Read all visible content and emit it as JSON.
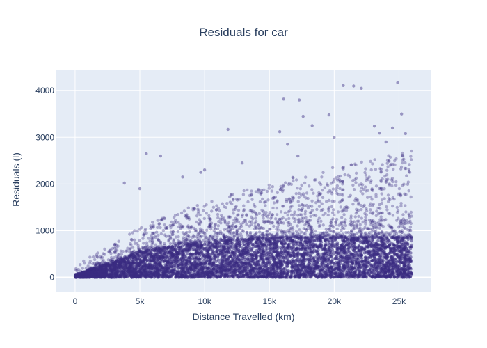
{
  "chart_data": {
    "type": "scatter",
    "title": "Residuals for car",
    "xlabel": "Distance Travelled (km)",
    "ylabel": "Residuals (l)",
    "xlim": [
      -1500,
      27500
    ],
    "ylim": [
      -320,
      4450
    ],
    "x_ticks": [
      {
        "value": 0,
        "label": "0"
      },
      {
        "value": 5000,
        "label": "5k"
      },
      {
        "value": 10000,
        "label": "10k"
      },
      {
        "value": 15000,
        "label": "15k"
      },
      {
        "value": 20000,
        "label": "20k"
      },
      {
        "value": 25000,
        "label": "25k"
      }
    ],
    "y_ticks": [
      {
        "value": 0,
        "label": "0"
      },
      {
        "value": 1000,
        "label": "1000"
      },
      {
        "value": 2000,
        "label": "2000"
      },
      {
        "value": 3000,
        "label": "3000"
      },
      {
        "value": 4000,
        "label": "4000"
      }
    ],
    "grid": true,
    "legend": "none",
    "colors": {
      "marker": "#3a2c82",
      "plot_bg": "#e5ecf6",
      "grid": "#ffffff",
      "text": "#2a3f5f"
    },
    "dense_band": {
      "description_x_range": [
        0,
        26000
      ],
      "upper_envelope": [
        [
          0,
          60
        ],
        [
          1000,
          150
        ],
        [
          2500,
          300
        ],
        [
          5000,
          550
        ],
        [
          8000,
          700
        ],
        [
          12000,
          800
        ],
        [
          16000,
          850
        ],
        [
          20000,
          850
        ],
        [
          26000,
          850
        ]
      ]
    },
    "outliers": [
      {
        "x": 3800,
        "y": 2020
      },
      {
        "x": 5000,
        "y": 1900
      },
      {
        "x": 5500,
        "y": 2650
      },
      {
        "x": 6600,
        "y": 2600
      },
      {
        "x": 8300,
        "y": 2150
      },
      {
        "x": 9700,
        "y": 2250
      },
      {
        "x": 10000,
        "y": 2300
      },
      {
        "x": 11800,
        "y": 3170
      },
      {
        "x": 12900,
        "y": 2450
      },
      {
        "x": 15800,
        "y": 3120
      },
      {
        "x": 16100,
        "y": 3820
      },
      {
        "x": 16400,
        "y": 2850
      },
      {
        "x": 17200,
        "y": 2600
      },
      {
        "x": 17300,
        "y": 3800
      },
      {
        "x": 17600,
        "y": 3450
      },
      {
        "x": 18300,
        "y": 3250
      },
      {
        "x": 19600,
        "y": 3480
      },
      {
        "x": 20000,
        "y": 3000
      },
      {
        "x": 20700,
        "y": 4110
      },
      {
        "x": 21500,
        "y": 4100
      },
      {
        "x": 22100,
        "y": 4050
      },
      {
        "x": 23100,
        "y": 3240
      },
      {
        "x": 23500,
        "y": 3090
      },
      {
        "x": 24000,
        "y": 2900
      },
      {
        "x": 24500,
        "y": 3200
      },
      {
        "x": 24900,
        "y": 4170
      },
      {
        "x": 25200,
        "y": 3500
      },
      {
        "x": 25500,
        "y": 3080
      },
      {
        "x": 25300,
        "y": 2600
      }
    ]
  }
}
